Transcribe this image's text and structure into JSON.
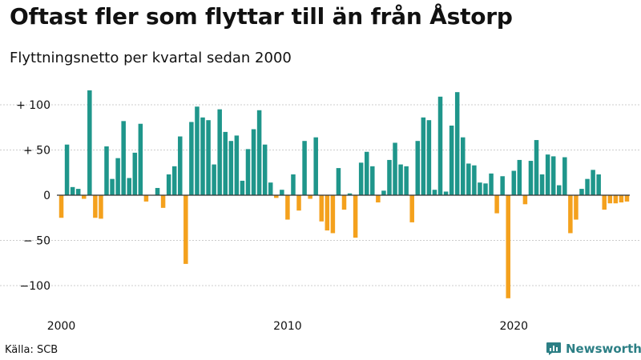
{
  "title": "Oftast fler som flyttar till än från Åstorp",
  "subtitle": "Flyttningsnetto per kvartal sedan 2000",
  "source": "Källa: SCB",
  "brand": "Newsworthy",
  "colors": {
    "positive": "#1f968b",
    "negative": "#f4a11d",
    "grid": "#cccccc",
    "zero": "#333333",
    "brand": "#2c7f85"
  },
  "chart_data": {
    "type": "bar",
    "title": "Oftast fler som flyttar till än från Åstorp",
    "subtitle": "Flyttningsnetto per kvartal sedan 2000",
    "xlabel": "",
    "ylabel": "",
    "ylim": [
      -120,
      120
    ],
    "grid": true,
    "x_start": "2000 Q1",
    "y_ticks": [
      {
        "value": 100,
        "label": "+ 100"
      },
      {
        "value": 50,
        "label": "+  50"
      },
      {
        "value": 0,
        "label": "0"
      },
      {
        "value": -50,
        "label": "− 50"
      },
      {
        "value": -100,
        "label": "−100"
      }
    ],
    "x_ticks": [
      {
        "index": 0,
        "label": "2000"
      },
      {
        "index": 40,
        "label": "2010"
      },
      {
        "index": 80,
        "label": "2020"
      }
    ],
    "values": [
      -25,
      56,
      9,
      7,
      -4,
      116,
      -25,
      -26,
      54,
      18,
      41,
      82,
      19,
      47,
      79,
      -7,
      0,
      8,
      -14,
      23,
      32,
      65,
      -76,
      81,
      98,
      86,
      83,
      34,
      95,
      70,
      60,
      66,
      16,
      51,
      73,
      94,
      56,
      14,
      -3,
      6,
      -27,
      23,
      -17,
      60,
      -4,
      64,
      -29,
      -39,
      -42,
      30,
      -16,
      2,
      -47,
      36,
      48,
      32,
      -8,
      5,
      39,
      58,
      34,
      32,
      -30,
      60,
      86,
      83,
      6,
      109,
      4,
      77,
      114,
      64,
      35,
      33,
      14,
      13,
      24,
      -20,
      21,
      -114,
      27,
      39,
      -10,
      38,
      61,
      23,
      45,
      43,
      11,
      42,
      -42,
      -27,
      7,
      18,
      28,
      23,
      -16,
      -9,
      -9,
      -8,
      -7
    ]
  }
}
